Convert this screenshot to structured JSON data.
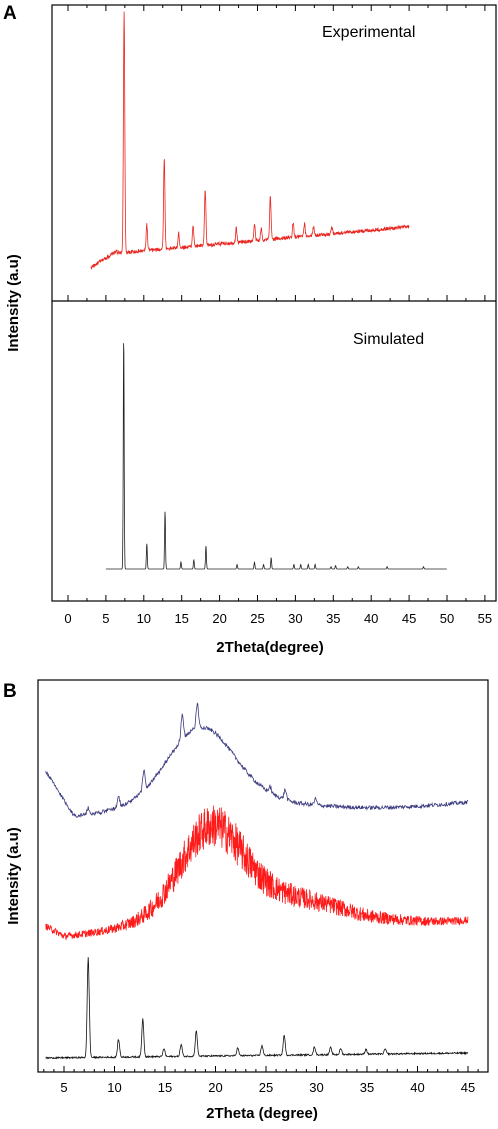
{
  "panel_a": {
    "label": "A",
    "ylabel": "Intensity (a.u)",
    "xlabel": "2Theta(degree)",
    "x_ticks": [
      0,
      5,
      10,
      15,
      20,
      25,
      30,
      35,
      40,
      45,
      50,
      55
    ]
  },
  "panel_b": {
    "label": "B",
    "ylabel": "Intensity (a.u)",
    "xlabel": "2Theta (degree)",
    "x_ticks": [
      5,
      10,
      15,
      20,
      25,
      30,
      35,
      40,
      45
    ]
  },
  "chart_data": [
    {
      "type": "line",
      "panel": "A-top",
      "annotation": "Experimental",
      "xlim": [
        -3,
        55.5
      ],
      "x_range": [
        3,
        45
      ],
      "color": "#e8251f",
      "peaks": [
        {
          "x": 7.4,
          "y": 1.0
        },
        {
          "x": 10.4,
          "y": 0.11
        },
        {
          "x": 12.7,
          "y": 0.38
        },
        {
          "x": 14.6,
          "y": 0.06
        },
        {
          "x": 16.5,
          "y": 0.09
        },
        {
          "x": 18.1,
          "y": 0.23
        },
        {
          "x": 22.2,
          "y": 0.06
        },
        {
          "x": 24.6,
          "y": 0.07
        },
        {
          "x": 25.5,
          "y": 0.05
        },
        {
          "x": 26.7,
          "y": 0.18
        },
        {
          "x": 29.7,
          "y": 0.06
        },
        {
          "x": 31.2,
          "y": 0.05
        },
        {
          "x": 32.4,
          "y": 0.04
        },
        {
          "x": 34.8,
          "y": 0.03
        }
      ]
    },
    {
      "type": "line",
      "panel": "A-bottom",
      "annotation": "Simulated",
      "xlim": [
        -3,
        55.5
      ],
      "x_range": [
        5,
        50
      ],
      "color": "#222222",
      "peaks": [
        {
          "x": 7.35,
          "y": 1.0
        },
        {
          "x": 10.4,
          "y": 0.11
        },
        {
          "x": 12.8,
          "y": 0.25
        },
        {
          "x": 14.9,
          "y": 0.03
        },
        {
          "x": 16.6,
          "y": 0.04
        },
        {
          "x": 18.2,
          "y": 0.1
        },
        {
          "x": 22.3,
          "y": 0.02
        },
        {
          "x": 24.6,
          "y": 0.03
        },
        {
          "x": 25.8,
          "y": 0.02
        },
        {
          "x": 26.8,
          "y": 0.05
        },
        {
          "x": 29.8,
          "y": 0.02
        },
        {
          "x": 30.7,
          "y": 0.02
        },
        {
          "x": 31.7,
          "y": 0.02
        },
        {
          "x": 32.6,
          "y": 0.02
        },
        {
          "x": 34.7,
          "y": 0.01
        },
        {
          "x": 35.3,
          "y": 0.015
        },
        {
          "x": 36.9,
          "y": 0.01
        },
        {
          "x": 38.3,
          "y": 0.01
        },
        {
          "x": 42.1,
          "y": 0.01
        },
        {
          "x": 46.9,
          "y": 0.01
        }
      ]
    },
    {
      "type": "line",
      "panel": "B",
      "xlim": [
        3,
        46
      ],
      "series": [
        {
          "color": "#3a3a80",
          "x_range": [
            3,
            45
          ],
          "peaks": [
            {
              "x": 7.4,
              "y": 0.03
            },
            {
              "x": 10.4,
              "y": 0.05
            },
            {
              "x": 12.9,
              "y": 0.1
            },
            {
              "x": 16.7,
              "y": 0.12
            },
            {
              "x": 18.2,
              "y": 0.12
            },
            {
              "x": 25.4,
              "y": 0.03
            },
            {
              "x": 26.9,
              "y": 0.05
            },
            {
              "x": 29.9,
              "y": 0.03
            }
          ]
        },
        {
          "color": "#ff1a1a",
          "x_range": [
            3,
            45
          ],
          "peaks": []
        },
        {
          "color": "#111111",
          "x_range": [
            3,
            45
          ],
          "peaks": [
            {
              "x": 7.4,
              "y": 1.0
            },
            {
              "x": 10.4,
              "y": 0.18
            },
            {
              "x": 12.8,
              "y": 0.38
            },
            {
              "x": 14.9,
              "y": 0.08
            },
            {
              "x": 16.6,
              "y": 0.12
            },
            {
              "x": 18.1,
              "y": 0.26
            },
            {
              "x": 22.2,
              "y": 0.08
            },
            {
              "x": 24.6,
              "y": 0.1
            },
            {
              "x": 26.8,
              "y": 0.2
            },
            {
              "x": 29.8,
              "y": 0.08
            },
            {
              "x": 31.4,
              "y": 0.07
            },
            {
              "x": 32.4,
              "y": 0.06
            },
            {
              "x": 34.9,
              "y": 0.05
            },
            {
              "x": 36.8,
              "y": 0.05
            }
          ]
        }
      ]
    }
  ]
}
